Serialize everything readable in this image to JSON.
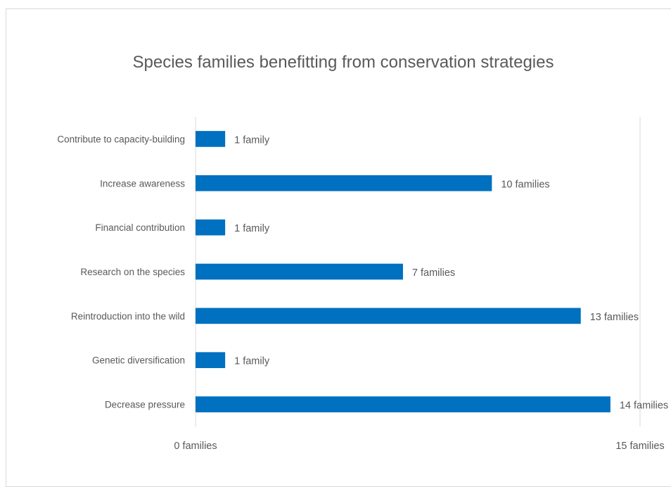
{
  "chart_data": {
    "type": "bar",
    "orientation": "horizontal",
    "title": "Species families benefitting from conservation strategies",
    "categories": [
      "Contribute to capacity-building",
      "Increase awareness",
      "Financial contribution",
      "Research on the species",
      "Reintroduction into the wild",
      "Genetic diversification",
      "Decrease pressure"
    ],
    "values": [
      1,
      10,
      1,
      7,
      13,
      1,
      14
    ],
    "data_labels": [
      "1 family",
      "10 families",
      "1 family",
      "7 families",
      "13 families",
      "1 family",
      "14 families"
    ],
    "xlim": [
      0,
      15
    ],
    "x_tick_labels": [
      "0 families",
      "15 families"
    ],
    "grid": true,
    "legend": "none",
    "colors": {
      "bar": "#0070c0",
      "gridline": "#d9d9d9",
      "text": "#595959"
    }
  }
}
